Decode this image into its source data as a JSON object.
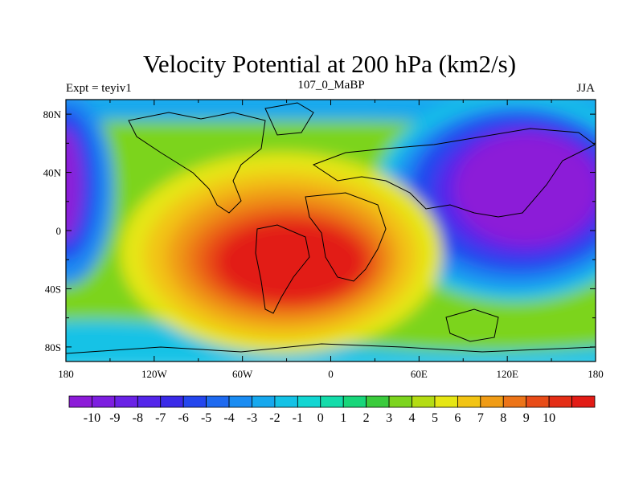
{
  "chart_data": {
    "type": "heatmap",
    "title": "Velocity Potential at 200 hPa (km2/s)",
    "subtitle_left": "Expt = teyiv1",
    "subtitle_center": "107_0_MaBP",
    "subtitle_right": "JJA",
    "x_ticks": [
      "180",
      "120W",
      "60W",
      "0",
      "60E",
      "120E",
      "180"
    ],
    "y_ticks": [
      "80N",
      "40N",
      "0",
      "40S",
      "80S"
    ],
    "x_range_deg_lon": [
      -180,
      180
    ],
    "y_range_deg_lat": [
      -90,
      90
    ],
    "colorbar": {
      "labels": [
        "-10",
        "-9",
        "-8",
        "-7",
        "-6",
        "-5",
        "-4",
        "-3",
        "-2",
        "-1",
        "0",
        "1",
        "2",
        "3",
        "4",
        "5",
        "6",
        "7",
        "8",
        "9",
        "10"
      ],
      "colors": [
        "#8c1bd8",
        "#7d1ee0",
        "#6a22e6",
        "#5426ea",
        "#3a2ae8",
        "#2446ee",
        "#1e6af0",
        "#1a8cf2",
        "#16a8ee",
        "#14c2e6",
        "#12d6d2",
        "#14dcaa",
        "#18d67a",
        "#3acb3c",
        "#7cd41e",
        "#b4dc14",
        "#e6e614",
        "#f2c414",
        "#f09c16",
        "#ec7418",
        "#e84c18",
        "#e42e16",
        "#e21c16"
      ],
      "min": -10,
      "max": 10,
      "interval": 1
    },
    "field_features": [
      {
        "kind": "maximum",
        "approx_value": 10,
        "lon": -25,
        "lat": -30
      },
      {
        "kind": "minimum",
        "approx_value": -10,
        "lon": 130,
        "lat": 35
      },
      {
        "kind": "minimum",
        "approx_value": -9,
        "lon": -175,
        "lat": 30
      }
    ]
  }
}
